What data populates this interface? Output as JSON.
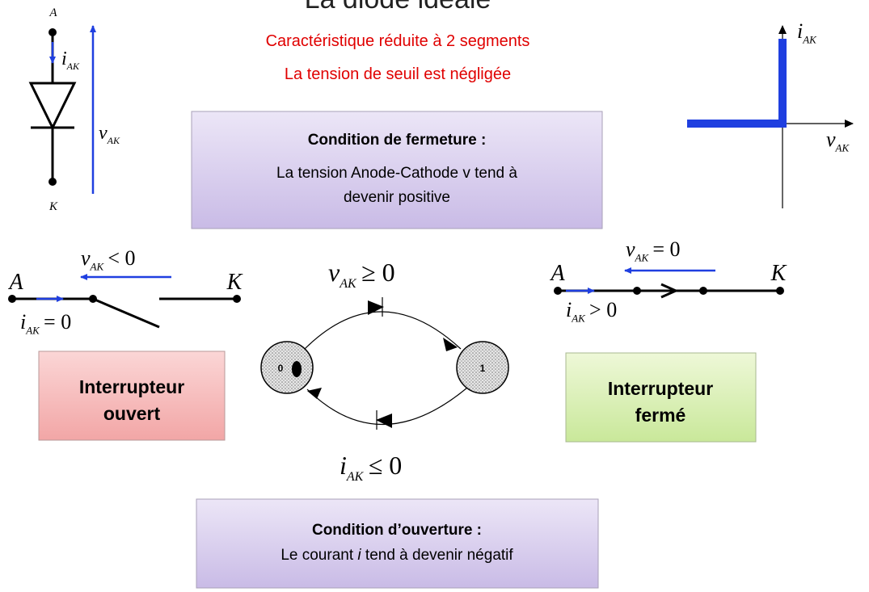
{
  "title": "La diode idéale",
  "subtitle": [
    "Caractéristique réduite à 2 segments",
    "La tension de seuil est négligée"
  ],
  "diode": {
    "anode": "A",
    "cathode": "K",
    "current": {
      "sym": "i",
      "sub": "AK"
    },
    "voltage": {
      "sym": "v",
      "sub": "AK"
    }
  },
  "characteristic": {
    "y_axis": {
      "sym": "i",
      "sub": "AK"
    },
    "x_axis": {
      "sym": "v",
      "sub": "AK"
    }
  },
  "closing_condition": {
    "title": "Condition de fermeture :",
    "lines": [
      "La tension Anode-Cathode  v tend à",
      "devenir positive"
    ]
  },
  "opening_condition": {
    "title": "Condition d’ouverture :",
    "text_before": "Le courant ",
    "italic": "i",
    "text_after": " tend à devenir négatif"
  },
  "open_switch": {
    "label": [
      "Interrupteur",
      "ouvert"
    ],
    "anode": "A",
    "cathode": "K",
    "voltage": {
      "sym": "v",
      "sub": "AK",
      "rel": "< 0"
    },
    "current": {
      "sym": "i",
      "sub": "AK",
      "rel": "= 0"
    }
  },
  "closed_switch": {
    "label": [
      "Interrupteur",
      "fermé"
    ],
    "anode": "A",
    "cathode": "K",
    "voltage": {
      "sym": "v",
      "sub": "AK",
      "rel": "= 0"
    },
    "current": {
      "sym": "i",
      "sub": "AK",
      "rel": "> 0"
    }
  },
  "state_graph": {
    "states": [
      "0",
      "1"
    ],
    "to_closed": {
      "sym": "v",
      "sub": "AK",
      "rel": "≥ 0"
    },
    "to_open": {
      "sym": "i",
      "sub": "AK",
      "rel": "≤ 0"
    }
  }
}
